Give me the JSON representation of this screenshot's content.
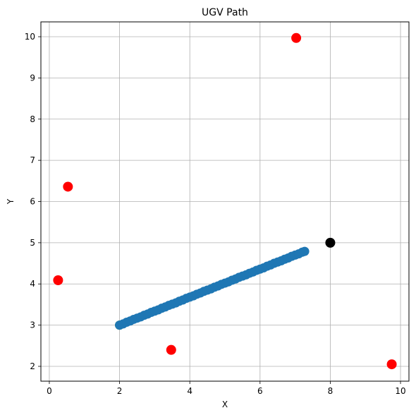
{
  "chart_data": {
    "type": "scatter",
    "title": "UGV Path",
    "xlabel": "X",
    "ylabel": "Y",
    "xlim": [
      -0.24,
      10.24
    ],
    "ylim": [
      1.64,
      10.36
    ],
    "xticks": [
      0,
      2,
      4,
      6,
      8,
      10
    ],
    "yticks": [
      2,
      3,
      4,
      5,
      6,
      7,
      8,
      9,
      10
    ],
    "grid": true,
    "colors": {
      "path": "#1f77b4",
      "obstacle": "#ff0000",
      "start": "#008000",
      "goal": "#000000"
    },
    "series": [
      {
        "role": "path",
        "x": [
          2.0,
          2.1,
          2.2,
          2.3,
          2.4,
          2.5,
          2.6,
          2.7,
          2.8,
          2.9,
          3.0,
          3.1,
          3.2,
          3.3,
          3.4,
          3.5,
          3.6,
          3.7,
          3.8,
          3.9,
          4.0,
          4.1,
          4.2,
          4.3,
          4.4,
          4.5,
          4.6,
          4.7,
          4.8,
          4.9,
          5.0,
          5.1,
          5.2,
          5.3,
          5.4,
          5.5,
          5.6,
          5.7,
          5.8,
          5.9,
          6.0,
          6.1,
          6.2,
          6.3,
          6.4,
          6.5,
          6.6,
          6.7,
          6.8,
          6.9,
          7.0,
          7.1,
          7.2,
          7.27
        ],
        "y": [
          3.0,
          3.03,
          3.07,
          3.1,
          3.14,
          3.17,
          3.2,
          3.24,
          3.27,
          3.31,
          3.34,
          3.37,
          3.41,
          3.44,
          3.48,
          3.51,
          3.54,
          3.58,
          3.61,
          3.65,
          3.68,
          3.71,
          3.75,
          3.78,
          3.82,
          3.85,
          3.88,
          3.92,
          3.95,
          3.99,
          4.02,
          4.05,
          4.09,
          4.12,
          4.16,
          4.19,
          4.22,
          4.26,
          4.29,
          4.33,
          4.36,
          4.39,
          4.43,
          4.46,
          4.5,
          4.53,
          4.56,
          4.6,
          4.63,
          4.67,
          4.7,
          4.73,
          4.77,
          4.79
        ]
      },
      {
        "role": "obstacles",
        "x": [
          7.03,
          0.53,
          0.25,
          3.47,
          9.75
        ],
        "y": [
          9.97,
          6.36,
          4.09,
          2.4,
          2.05
        ]
      },
      {
        "role": "start",
        "x": [
          2.0
        ],
        "y": [
          3.0
        ]
      },
      {
        "role": "goal",
        "x": [
          8.0
        ],
        "y": [
          5.0
        ]
      }
    ]
  }
}
